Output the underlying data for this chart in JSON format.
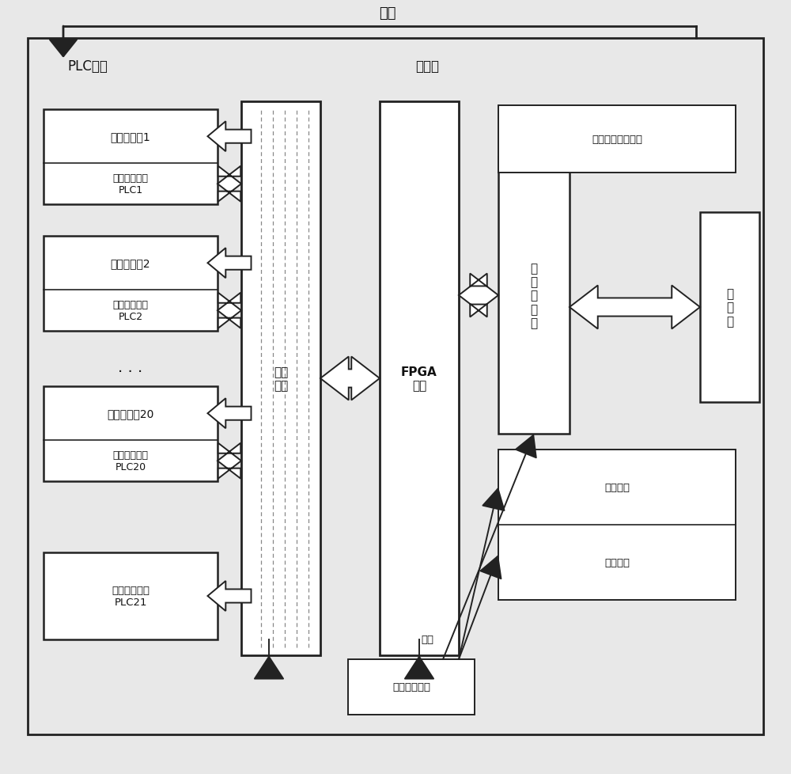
{
  "bg_color": "#e8e8e8",
  "box_fill": "#ffffff",
  "box_edge": "#222222",
  "title_supply": "供电",
  "label_plc_block": "PLC模块",
  "label_resource_board": "资源板",
  "label_drive": "驱动\n电路",
  "label_fpga": "FPGA\n电路",
  "label_ethernet": "以\n太\n网\n模\n块",
  "label_upper": "上\n位\n机",
  "label_ac_bus": "交流总线模拟电路",
  "label_dc_power": "直流电源电路",
  "label_clock": "时钟电路",
  "label_reset": "复位电路",
  "label_plc1_light": "工作显示灯1",
  "label_plc1_client": "客户端子单元\nPLC1",
  "label_plc2_light": "工作显示灯2",
  "label_plc2_client": "客户端子单元\nPLC2",
  "label_plc20_light": "工作显示灯20",
  "label_plc20_client": "客户端子单元\nPLC20",
  "label_server": "服务器子单元\nPLC21",
  "label_supply2": "供电"
}
